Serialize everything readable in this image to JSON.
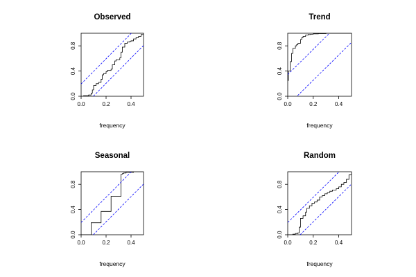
{
  "chart_data": [
    {
      "type": "line",
      "title": "Observed",
      "xlabel": "frequency",
      "ylabel": "",
      "xlim": [
        0,
        0.5
      ],
      "ylim": [
        0,
        1
      ],
      "x_ticks": [
        "0.0",
        "0.2",
        "0.4"
      ],
      "y_ticks": [
        "0.0",
        "0.4",
        "0.8"
      ],
      "series": [
        {
          "x": [
            0,
            0.02,
            0.06,
            0.08,
            0.09,
            0.1,
            0.12,
            0.14,
            0.16,
            0.17,
            0.18,
            0.2,
            0.21,
            0.24,
            0.25,
            0.27,
            0.28,
            0.31,
            0.32,
            0.33,
            0.35,
            0.37,
            0.39,
            0.4,
            0.42,
            0.44,
            0.46,
            0.48,
            0.5
          ],
          "y": [
            0,
            0.01,
            0.02,
            0.05,
            0.1,
            0.17,
            0.2,
            0.22,
            0.27,
            0.34,
            0.36,
            0.39,
            0.41,
            0.43,
            0.5,
            0.56,
            0.58,
            0.61,
            0.7,
            0.78,
            0.84,
            0.86,
            0.87,
            0.88,
            0.91,
            0.93,
            0.95,
            0.98,
            1.0
          ]
        },
        {
          "x": [
            0,
            0.5
          ],
          "y": [
            0.195,
            1.195
          ]
        },
        {
          "x": [
            0,
            0.5
          ],
          "y": [
            -0.195,
            0.805
          ]
        }
      ]
    },
    {
      "type": "line",
      "title": "Trend",
      "xlabel": "frequency",
      "ylabel": "",
      "xlim": [
        0,
        0.5
      ],
      "ylim": [
        0,
        1
      ],
      "x_ticks": [
        "0.0",
        "0.2",
        "0.4"
      ],
      "y_ticks": [
        "0.0",
        "0.4",
        "0.8"
      ],
      "series": [
        {
          "x": [
            0,
            0.005,
            0.02,
            0.03,
            0.04,
            0.06,
            0.07,
            0.08,
            0.1,
            0.11,
            0.12,
            0.14,
            0.16,
            0.18,
            0.2,
            0.24,
            0.3,
            0.5
          ],
          "y": [
            0.25,
            0.4,
            0.55,
            0.68,
            0.76,
            0.8,
            0.82,
            0.84,
            0.9,
            0.93,
            0.95,
            0.97,
            0.98,
            0.985,
            0.99,
            0.995,
            1.0,
            1.0
          ]
        },
        {
          "x": [
            0,
            0.5
          ],
          "y": [
            0.345,
            1.345
          ]
        },
        {
          "x": [
            0,
            0.5
          ],
          "y": [
            -0.145,
            0.855
          ]
        }
      ]
    },
    {
      "type": "line",
      "title": "Seasonal",
      "xlabel": "frequency",
      "ylabel": "",
      "xlim": [
        0,
        0.5
      ],
      "ylim": [
        0,
        1
      ],
      "x_ticks": [
        "0.0",
        "0.2",
        "0.4"
      ],
      "y_ticks": [
        "0.0",
        "0.4",
        "0.8"
      ],
      "series": [
        {
          "x": [
            0,
            0.08,
            0.16,
            0.24,
            0.32,
            0.33,
            0.34,
            0.36,
            0.42,
            0.5
          ],
          "y": [
            0,
            0.19,
            0.37,
            0.61,
            0.96,
            0.97,
            0.98,
            0.99,
            1.0,
            1.0
          ]
        },
        {
          "x": [
            0,
            0.5
          ],
          "y": [
            0.195,
            1.195
          ]
        },
        {
          "x": [
            0,
            0.5
          ],
          "y": [
            -0.195,
            0.805
          ]
        }
      ]
    },
    {
      "type": "line",
      "title": "Random",
      "xlabel": "frequency",
      "ylabel": "",
      "xlim": [
        0,
        0.5
      ],
      "ylim": [
        0,
        1
      ],
      "x_ticks": [
        "0.0",
        "0.2",
        "0.4"
      ],
      "y_ticks": [
        "0.0",
        "0.4",
        "0.8"
      ],
      "series": [
        {
          "x": [
            0,
            0.04,
            0.06,
            0.08,
            0.09,
            0.1,
            0.12,
            0.14,
            0.15,
            0.17,
            0.19,
            0.21,
            0.23,
            0.25,
            0.27,
            0.29,
            0.31,
            0.33,
            0.35,
            0.38,
            0.4,
            0.42,
            0.44,
            0.46,
            0.48,
            0.5
          ],
          "y": [
            0,
            0.01,
            0.02,
            0.03,
            0.12,
            0.26,
            0.3,
            0.36,
            0.42,
            0.46,
            0.5,
            0.52,
            0.55,
            0.6,
            0.62,
            0.65,
            0.67,
            0.69,
            0.71,
            0.73,
            0.76,
            0.8,
            0.83,
            0.88,
            0.95,
            1.0
          ]
        },
        {
          "x": [
            0,
            0.5
          ],
          "y": [
            0.195,
            1.195
          ]
        },
        {
          "x": [
            0,
            0.5
          ],
          "y": [
            -0.195,
            0.805
          ]
        }
      ]
    }
  ]
}
